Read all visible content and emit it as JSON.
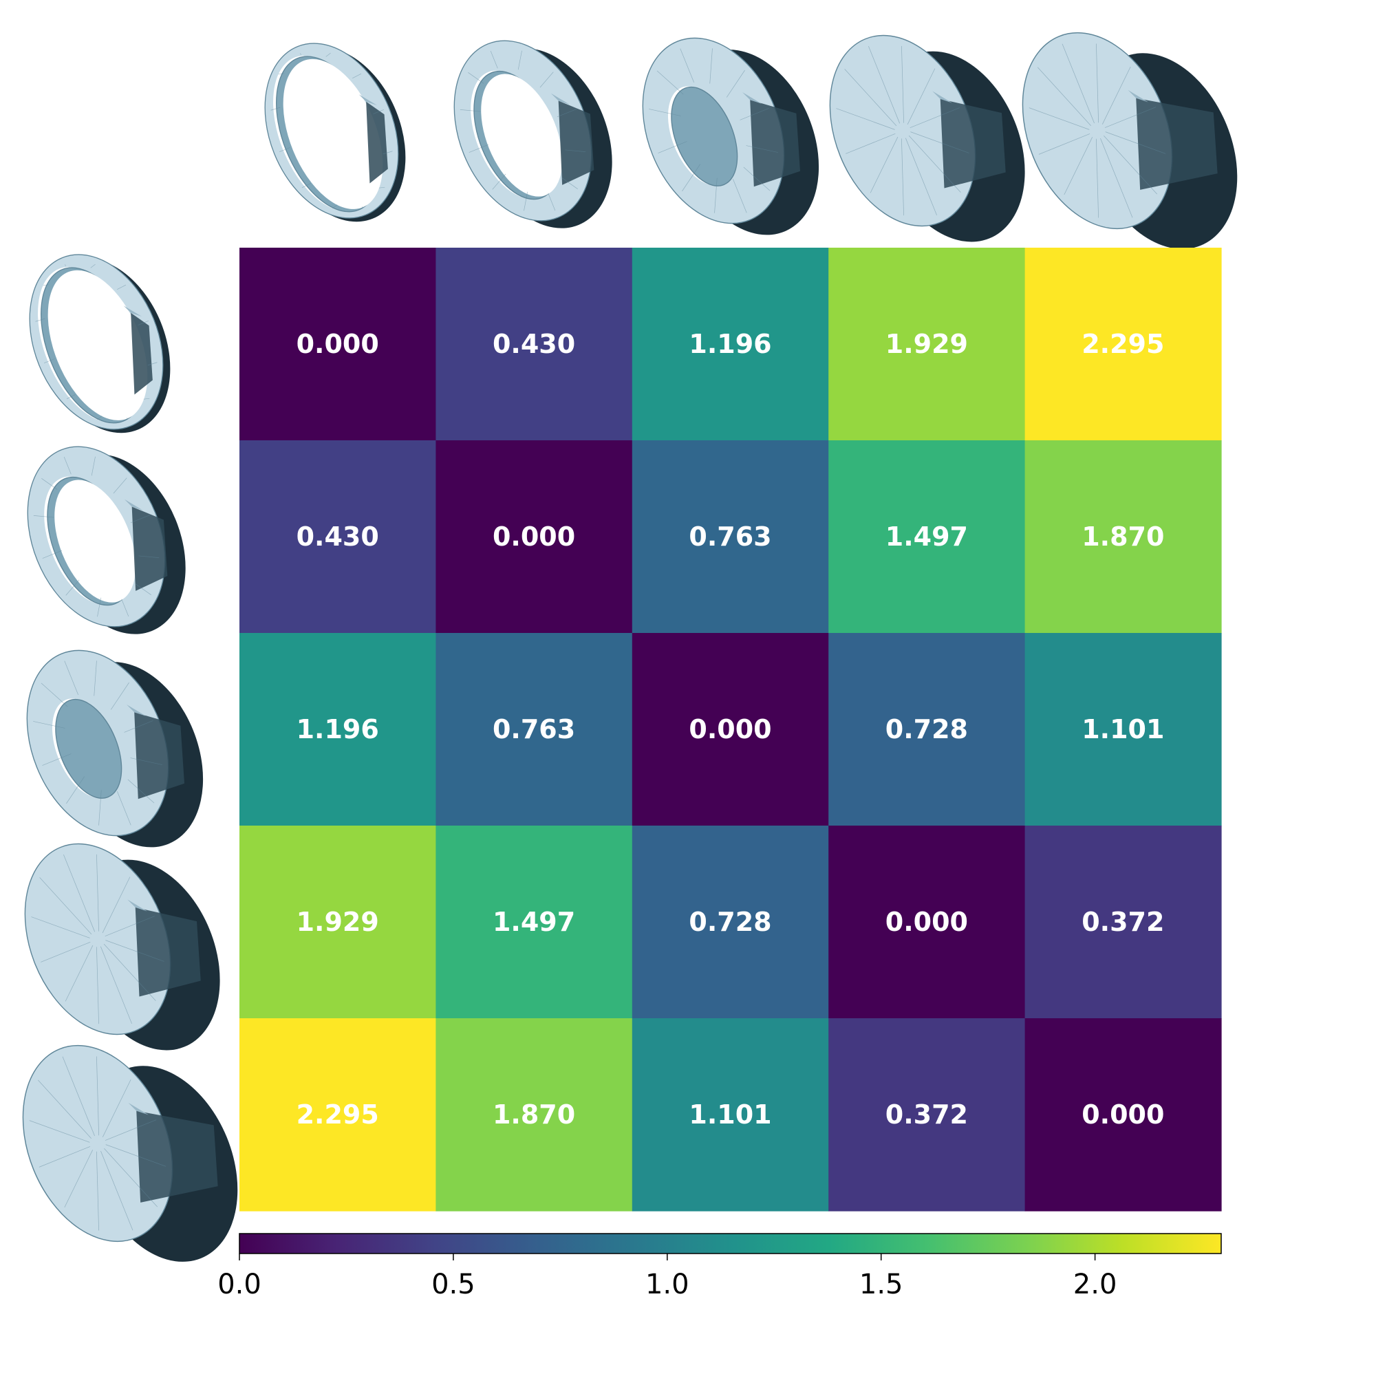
{
  "chart_data": {
    "type": "heatmap",
    "title": "",
    "xlabel": "",
    "ylabel": "",
    "row_shapes": [
      "thin-torus-icon",
      "medium-torus-icon",
      "thick-torus-icon",
      "fat-torus-icon",
      "fattest-torus-icon"
    ],
    "col_shapes": [
      "thin-torus-icon",
      "medium-torus-icon",
      "thick-torus-icon",
      "fat-torus-icon",
      "fattest-torus-icon"
    ],
    "values": [
      [
        0.0,
        0.43,
        1.196,
        1.929,
        2.295
      ],
      [
        0.43,
        0.0,
        0.763,
        1.497,
        1.87
      ],
      [
        1.196,
        0.763,
        0.0,
        0.728,
        1.101
      ],
      [
        1.929,
        1.497,
        0.728,
        0.0,
        0.372
      ],
      [
        2.295,
        1.87,
        1.101,
        0.372,
        0.0
      ]
    ],
    "labels": [
      [
        "0.000",
        "0.430",
        "1.196",
        "1.929",
        "2.295"
      ],
      [
        "0.430",
        "0.000",
        "0.763",
        "1.497",
        "1.870"
      ],
      [
        "1.196",
        "0.763",
        "0.000",
        "0.728",
        "1.101"
      ],
      [
        "1.929",
        "1.497",
        "0.728",
        "0.000",
        "0.372"
      ],
      [
        "2.295",
        "1.870",
        "1.101",
        "0.372",
        "0.000"
      ]
    ],
    "colormap": "viridis",
    "vmin": 0.0,
    "vmax": 2.295,
    "colorbar": {
      "orientation": "horizontal",
      "placement": "bottom",
      "ticks": [
        0.0,
        0.5,
        1.0,
        1.5,
        2.0
      ],
      "tick_labels": [
        "0.0",
        "0.5",
        "1.0",
        "1.5",
        "2.0"
      ]
    },
    "shape_colors": {
      "light": "#c6dbe6",
      "mid": "#9ab8c8",
      "dark": "#2f4a58",
      "shadow": "#1c2f3a",
      "edge": "#5f8699"
    }
  }
}
